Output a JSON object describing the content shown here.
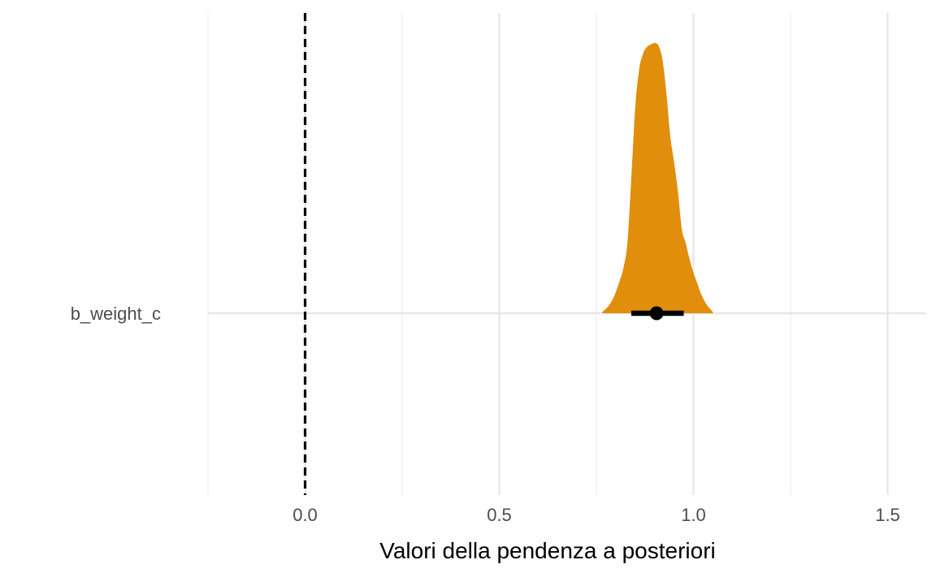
{
  "chart_data": {
    "type": "area",
    "title": "",
    "xlabel": "Valori della pendenza a posteriori",
    "ylabel": "",
    "xlim": [
      -0.25,
      1.6
    ],
    "x_ticks": [
      0.0,
      0.5,
      1.0,
      1.5
    ],
    "x_tick_labels": [
      "0.0",
      "0.5",
      "1.0",
      "1.5"
    ],
    "x_minor_ticks": [
      -0.25,
      0.25,
      0.75,
      1.25
    ],
    "grid": true,
    "categories": [
      "b_weight_c"
    ],
    "series": [
      {
        "category": "b_weight_c",
        "fill_color": "#E08E0B",
        "density": {
          "x": [
            0.765,
            0.78,
            0.795,
            0.81,
            0.82,
            0.83,
            0.84,
            0.85,
            0.86,
            0.87,
            0.88,
            0.89,
            0.9,
            0.905,
            0.91,
            0.92,
            0.93,
            0.94,
            0.95,
            0.96,
            0.97,
            0.98,
            0.99,
            1.0,
            1.01,
            1.02,
            1.035,
            1.05
          ],
          "y": [
            0.005,
            0.025,
            0.06,
            0.12,
            0.17,
            0.26,
            0.5,
            0.76,
            0.9,
            0.96,
            0.985,
            0.995,
            1.0,
            0.998,
            0.99,
            0.94,
            0.82,
            0.66,
            0.56,
            0.45,
            0.31,
            0.26,
            0.2,
            0.15,
            0.11,
            0.07,
            0.03,
            0.005
          ]
        },
        "point_estimate": 0.905,
        "interval": [
          0.84,
          0.975
        ]
      }
    ],
    "reference_line": {
      "x": 0.0,
      "style": "dashed",
      "color": "#000000"
    }
  }
}
